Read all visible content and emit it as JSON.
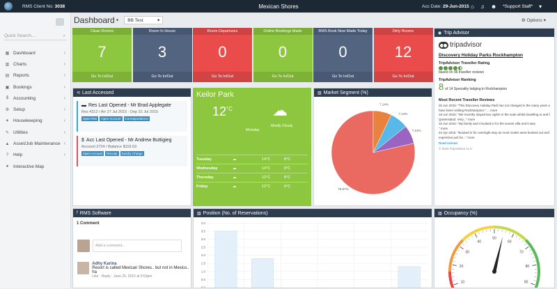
{
  "topbar": {
    "client_label": "RMS Client No:",
    "client_no": "3038",
    "title": "Mexican Shores",
    "acc_label": "Acc Date:",
    "acc_date": "29-Jun-2015",
    "user": "*Support Staff*"
  },
  "sidebar": {
    "search_placeholder": "Quick Search...",
    "items": [
      {
        "label": "Dashboard",
        "icon": "dashboard-icon"
      },
      {
        "label": "Charts",
        "icon": "bar-chart-icon"
      },
      {
        "label": "Reports",
        "icon": "reports-icon"
      },
      {
        "label": "Bookings",
        "icon": "bookings-icon"
      },
      {
        "label": "Accounting",
        "icon": "accounting-icon"
      },
      {
        "label": "Setup",
        "icon": "gear-icon"
      },
      {
        "label": "Housekeeping",
        "icon": "housekeeping-icon"
      },
      {
        "label": "Utilities",
        "icon": "wrench-icon"
      },
      {
        "label": "Asset/Job Maintenance",
        "icon": "asset-icon"
      },
      {
        "label": "Help",
        "icon": "help-icon"
      },
      {
        "label": "Interactive Map",
        "icon": "map-marker-icon"
      }
    ]
  },
  "header": {
    "title": "Dashboard",
    "select_value": "BB Test",
    "options_label": "Options"
  },
  "tiles": [
    {
      "title": "Clean Rooms",
      "value": "7",
      "footer": "Go To In/Out",
      "color": "#8dc63f"
    },
    {
      "title": "Room In House",
      "value": "3",
      "footer": "Go To In/Out",
      "color": "#536480"
    },
    {
      "title": "Room Departures",
      "value": "0",
      "footer": "Go To In/Out",
      "color": "#ea4c4c"
    },
    {
      "title": "Online Bookings Made",
      "value": "0",
      "footer": "Go To In/Out",
      "color": "#8dc63f"
    },
    {
      "title": "RMS Book Now Made Today",
      "value": "0",
      "footer": "Go To In/Out",
      "color": "#536480"
    },
    {
      "title": "Dirty Rooms",
      "value": "12",
      "footer": "Go To In/Out",
      "color": "#ea4c4c"
    }
  ],
  "trip_advisor": {
    "panel_title": "Trip Advisor",
    "brand": "tripadvisor",
    "park": "Discovery Holiday Parks Rockhampton",
    "rating_label": "TripAdvisor Traveller Rating",
    "rating_count": "based on 96 traveller reviews",
    "rating_bubbles": 4.5,
    "ranking_label": "TripAdvisor Ranking",
    "rank_number": "8",
    "rank_text": "of 14 Speciality lodging in Rockhampton",
    "recent_label": "Most Recent Traveller Reviews",
    "reviews": [
      "25 Jun 2015: \"This Discovery Holiday Park has not changed in the many years we",
      "have been visiting Rockhampton.\" ... more",
      "18 Jun 2015: \"We recently stayed two nights in the suite whilst travelling to and fro",
      "Queensland. Very...\" more",
      "15 Jun 2015: \"My family and I booked in for the sunset villa and it was",
      "\" more",
      "22 Apr 2015: \"Booked in for overnight stay as most motels were booked out and it",
      "expensive just for...\" more"
    ],
    "read_reviews": "Read reviews",
    "copyright": "© 2015 TripAdvisor LLC"
  },
  "last_accessed": {
    "panel_title": "Last Accessed",
    "res": {
      "title": "Res Last Opened - Mr Brad Applegate",
      "sub": "Res 4312 / Arr 27 Jul 2015 - Dep 31 Jul 2015",
      "buttons": [
        "Open Res",
        "Open Account",
        "Correspondence"
      ]
    },
    "acc": {
      "title": "Acc Last Opened - Mr Andrew Buttigieg",
      "sub": "Account 2724 / Balance $119.63",
      "buttons": [
        "Open Account",
        "Receipt",
        "Sundry Charge"
      ]
    }
  },
  "weather": {
    "city": "Keilor Park",
    "temp": "12",
    "unit": "°C",
    "day": "Monday",
    "condition": "Mostly Cloudy",
    "forecast": [
      {
        "day": "Tuesday",
        "hi": "14°C",
        "lo": "8°C"
      },
      {
        "day": "Wednesday",
        "hi": "14°C",
        "lo": "8°C"
      },
      {
        "day": "Thursday",
        "hi": "12°C",
        "lo": "8°C"
      },
      {
        "day": "Friday",
        "hi": "12°C",
        "lo": "6°C"
      }
    ]
  },
  "market_segment": {
    "panel_title": "Market Segment (%)",
    "chart_data": {
      "type": "pie",
      "title": "Market Segment (%)",
      "slices": [
        {
          "label": "78.57%",
          "value": 78.57,
          "color": "#ea6a62"
        },
        {
          "label": "7.14%",
          "value": 7.14,
          "color": "#e8823f"
        },
        {
          "label": "7.14%",
          "value": 7.14,
          "color": "#58b9e8"
        },
        {
          "label": "7.14%",
          "value": 7.14,
          "color": "#9b64c1"
        }
      ]
    }
  },
  "rms_software": {
    "panel_title": "RMS Software",
    "comment_count": "1 Comment",
    "add_comment": "Add a comment...",
    "commenter": "Adhy Karina",
    "comment": "Resort is called Mexican Shores.. but not in Mexico.. ha",
    "meta": "Like · Reply · June 26, 2015 at 9:53pm"
  },
  "position": {
    "panel_title": "Position (No. of Reservations)",
    "chart_data": {
      "type": "bar",
      "title": "Position (No. of Reservations)",
      "ylim": [
        0,
        4.1
      ],
      "yticks": [
        "4.0",
        "3.5",
        "3.0",
        "2.5",
        "2.0",
        "1.5",
        "1.0",
        "0.5",
        "0.0"
      ],
      "values": [
        3.5,
        1.8,
        0,
        0,
        0,
        1.3
      ]
    }
  },
  "occupancy": {
    "panel_title": "Occupancy (%)",
    "chart_data": {
      "type": "gauge",
      "title": "Occupancy (%)",
      "ticks": [
        "0",
        "10",
        "20",
        "30",
        "40",
        "50",
        "60",
        "70",
        "80",
        "90",
        "100"
      ],
      "value": 55
    }
  }
}
